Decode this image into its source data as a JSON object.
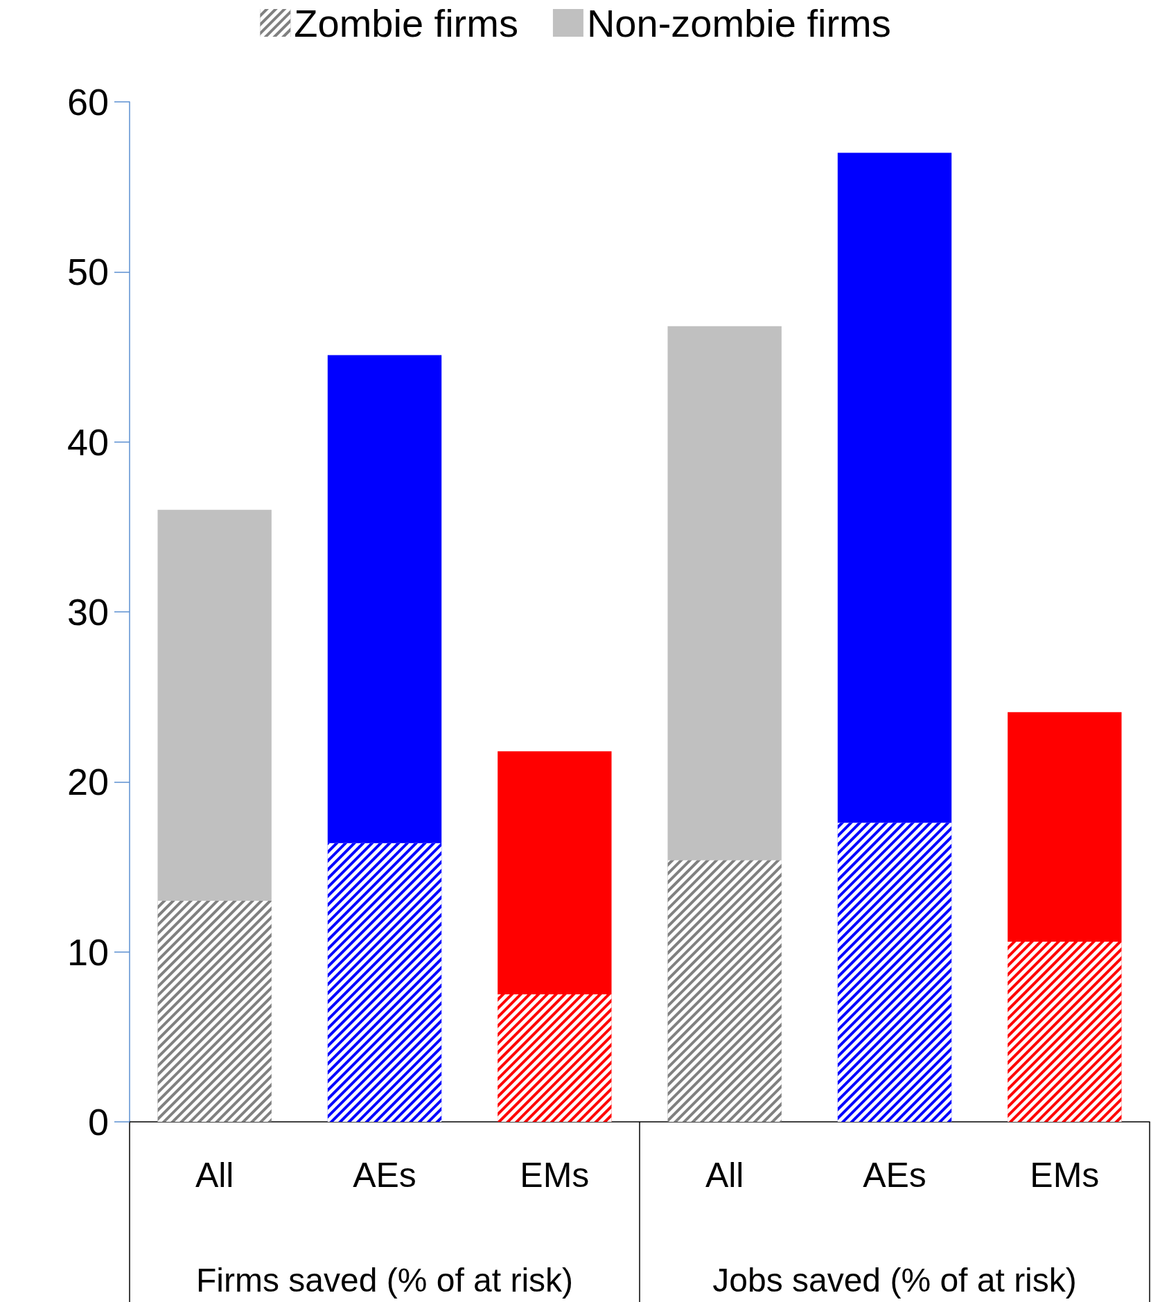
{
  "chart_data": {
    "type": "bar",
    "stacked": true,
    "categories": [
      "All",
      "AEs",
      "EMs",
      "All",
      "AEs",
      "EMs"
    ],
    "annotations": [
      "Firms saved (% of at risk)",
      "Jobs saved (% of at risk)"
    ],
    "series": [
      {
        "name": "Zombie firms",
        "color": "#808080",
        "colors": [
          "#808080",
          "#0000ff",
          "#ff0000",
          "#808080",
          "#0000ff",
          "#ff0000"
        ],
        "values": [
          13.0,
          16.4,
          7.5,
          15.4,
          17.6,
          10.6
        ]
      },
      {
        "name": "Non-zombie firms",
        "color": "#c0c0c0",
        "colors": [
          "#c0c0c0",
          "#0000ff",
          "#ff0000",
          "#c0c0c0",
          "#0000ff",
          "#ff0000"
        ],
        "values": [
          23.0,
          28.7,
          14.3,
          31.4,
          39.4,
          13.5
        ]
      }
    ],
    "ylim": [
      0,
      60
    ],
    "yticks": [
      0,
      10,
      20,
      30,
      40,
      50,
      60
    ],
    "grid": false,
    "legend": "top"
  }
}
